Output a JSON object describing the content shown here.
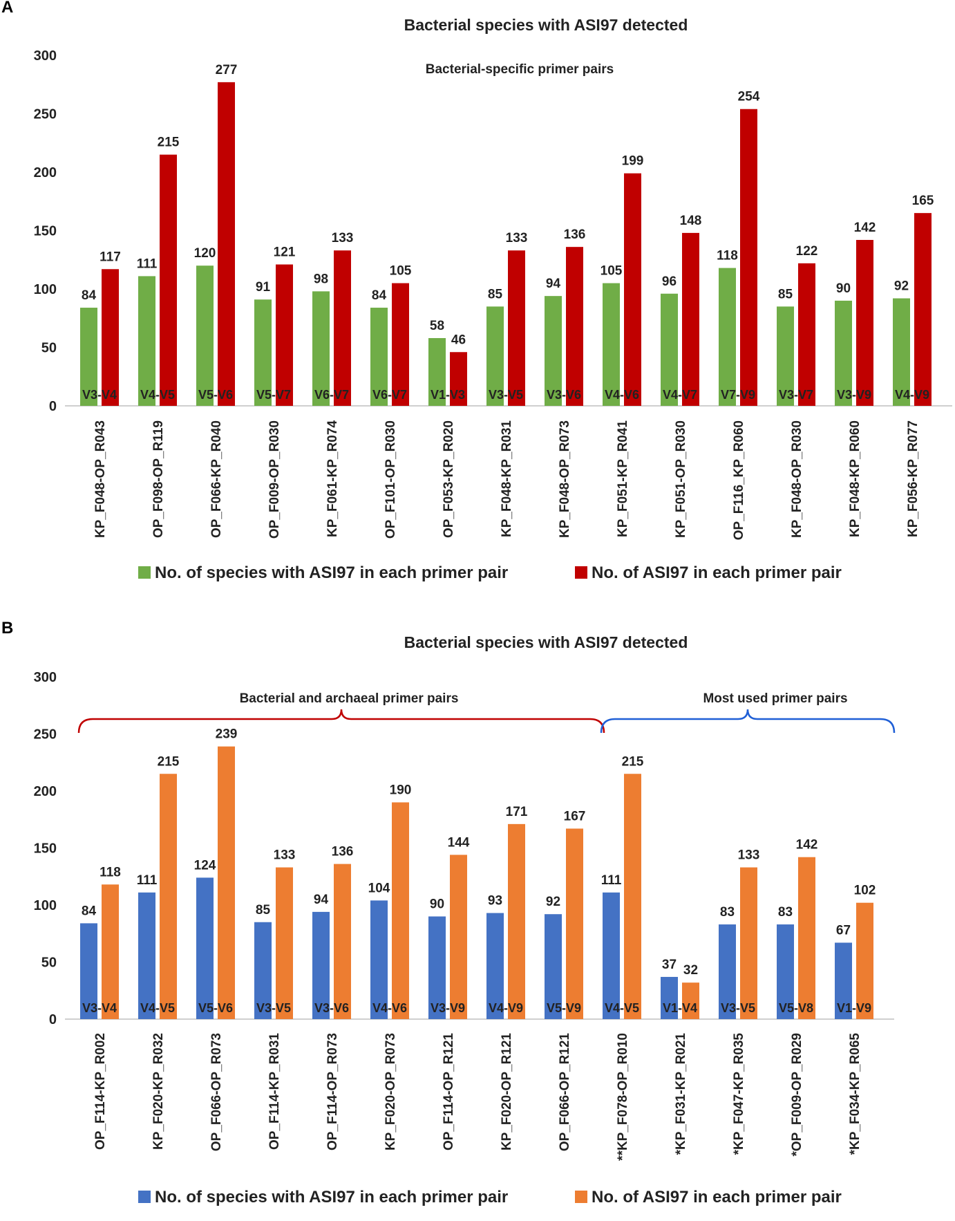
{
  "panels": [
    {
      "letter": "A"
    },
    {
      "letter": "B"
    }
  ],
  "chart_data": [
    {
      "type": "bar",
      "panel": "A",
      "title": "Bacterial species with ASI97 detected",
      "annotation": "Bacterial-specific  primer pairs",
      "ylim": [
        0,
        300
      ],
      "yticks": [
        0,
        50,
        100,
        150,
        200,
        250,
        300
      ],
      "grid": false,
      "legend_position": "bottom",
      "categories": [
        "KP_F048-OP_R043",
        "OP_F098-OP_R119",
        "OP_F066-KP_R040",
        "OP_F009-OP_R030",
        "KP_F061-KP_R074",
        "OP_F101-OP_R030",
        "OP_F053-KP_R020",
        "KP_F048-KP_R031",
        "KP_F048-OP_R073",
        "KP_F051-KP_R041",
        "KP_F051-OP_R030",
        "OP_F116_KP_R060",
        "KP_F048-OP_R030",
        "KP_F048-KP_R060",
        "KP_F056-KP_R077"
      ],
      "regions": [
        "V3-V4",
        "V4-V5",
        "V5-V6",
        "V5-V7",
        "V6-V7",
        "V6-V7",
        "V1-V3",
        "V3-V5",
        "V3-V6",
        "V4-V6",
        "V4-V7",
        "V7-V9",
        "V3-V7",
        "V3-V9",
        "V4-V9"
      ],
      "series": [
        {
          "name": "No. of species with ASI97 in each primer pair",
          "color": "#70ad47",
          "values": [
            84,
            111,
            120,
            91,
            98,
            84,
            58,
            85,
            94,
            105,
            96,
            118,
            85,
            90,
            92
          ]
        },
        {
          "name": "No. of ASI97 in each primer pair",
          "color": "#c00000",
          "values": [
            117,
            215,
            277,
            121,
            133,
            105,
            46,
            133,
            136,
            199,
            148,
            254,
            122,
            142,
            165
          ]
        }
      ]
    },
    {
      "type": "bar",
      "panel": "B",
      "title": "Bacterial species with ASI97 detected",
      "ylim": [
        0,
        300
      ],
      "yticks": [
        0,
        50,
        100,
        150,
        200,
        250,
        300
      ],
      "grid": false,
      "legend_position": "bottom",
      "groups": [
        {
          "label": "Bacterial and archaeal primer pairs",
          "color": "#c00000",
          "start": 0,
          "end": 8
        },
        {
          "label": "Most used primer pairs",
          "color": "#1f5fd6",
          "start": 9,
          "end": 13
        }
      ],
      "categories": [
        "OP_F114-KP_R002",
        "KP_F020-KP_R032",
        "OP_F066-OP_R073",
        "OP_F114-KP_R031",
        "OP_F114-OP_R073",
        "KP_F020-OP_R073",
        "OP_F114-OP_R121",
        "KP_F020-OP_R121",
        "OP_F066-OP_R121",
        "**KP_F078-OP_R010",
        "*KP_F031-KP_R021",
        "*KP_F047-KP_R035",
        "*OP_F009-OP_R029",
        "*KP_F034-KP_R065"
      ],
      "regions": [
        "V3-V4",
        "V4-V5",
        "V5-V6",
        "V3-V5",
        "V3-V6",
        "V4-V6",
        "V3-V9",
        "V4-V9",
        "V5-V9",
        "V4-V5",
        "V1-V4",
        "V3-V5",
        "V5-V8",
        "V1-V9"
      ],
      "series": [
        {
          "name": "No. of species with ASI97 in each primer pair",
          "color": "#4472c4",
          "values": [
            84,
            111,
            124,
            85,
            94,
            104,
            90,
            93,
            92,
            111,
            37,
            83,
            83,
            67
          ]
        },
        {
          "name": "No. of ASI97 in each primer pair",
          "color": "#ed7d31",
          "values": [
            118,
            215,
            239,
            133,
            136,
            190,
            144,
            171,
            167,
            215,
            32,
            133,
            142,
            102
          ]
        }
      ]
    }
  ]
}
